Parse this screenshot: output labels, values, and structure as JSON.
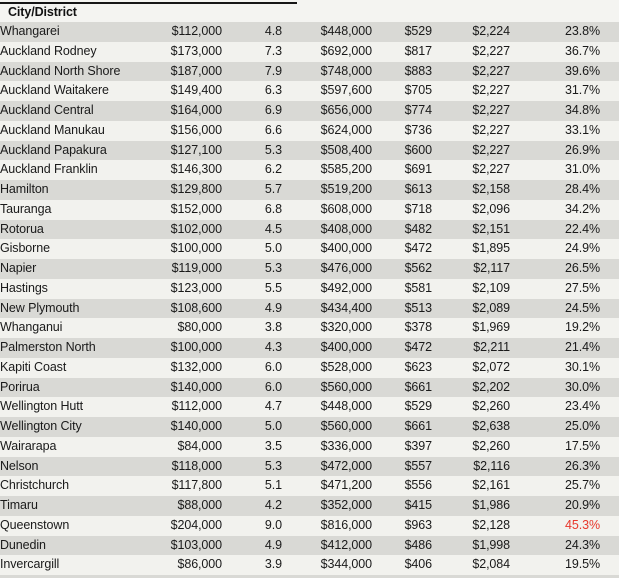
{
  "header": {
    "title": "City/District"
  },
  "colors": {
    "stripe_row": "#d9d9d5",
    "plain_row": "#f2f2ee",
    "header_bg": "#f4f4f1",
    "text": "#1a1a1a",
    "percent_text": "#3f3f3f",
    "alert_red": "#e8372c",
    "top_rule": "#161616"
  },
  "chart_data": {
    "type": "table",
    "title": "City/District",
    "columns": [
      "City/District",
      "",
      "",
      "",
      "",
      "",
      ""
    ],
    "rows": [
      [
        "Whangarei",
        "$112,000",
        "4.8",
        "$448,000",
        "$529",
        "$2,224",
        "23.8%"
      ],
      [
        "Auckland Rodney",
        "$173,000",
        "7.3",
        "$692,000",
        "$817",
        "$2,227",
        "36.7%"
      ],
      [
        "Auckland North Shore",
        "$187,000",
        "7.9",
        "$748,000",
        "$883",
        "$2,227",
        "39.6%"
      ],
      [
        "Auckland Waitakere",
        "$149,400",
        "6.3",
        "$597,600",
        "$705",
        "$2,227",
        "31.7%"
      ],
      [
        "Auckland Central",
        "$164,000",
        "6.9",
        "$656,000",
        "$774",
        "$2,227",
        "34.8%"
      ],
      [
        "Auckland Manukau",
        "$156,000",
        "6.6",
        "$624,000",
        "$736",
        "$2,227",
        "33.1%"
      ],
      [
        "Auckland Papakura",
        "$127,100",
        "5.3",
        "$508,400",
        "$600",
        "$2,227",
        "26.9%"
      ],
      [
        "Auckland Franklin",
        "$146,300",
        "6.2",
        "$585,200",
        "$691",
        "$2,227",
        "31.0%"
      ],
      [
        "Hamilton",
        "$129,800",
        "5.7",
        "$519,200",
        "$613",
        "$2,158",
        "28.4%"
      ],
      [
        "Tauranga",
        "$152,000",
        "6.8",
        "$608,000",
        "$718",
        "$2,096",
        "34.2%"
      ],
      [
        "Rotorua",
        "$102,000",
        "4.5",
        "$408,000",
        "$482",
        "$2,151",
        "22.4%"
      ],
      [
        "Gisborne",
        "$100,000",
        "5.0",
        "$400,000",
        "$472",
        "$1,895",
        "24.9%"
      ],
      [
        "Napier",
        "$119,000",
        "5.3",
        "$476,000",
        "$562",
        "$2,117",
        "26.5%"
      ],
      [
        "Hastings",
        "$123,000",
        "5.5",
        "$492,000",
        "$581",
        "$2,109",
        "27.5%"
      ],
      [
        "New Plymouth",
        "$108,600",
        "4.9",
        "$434,400",
        "$513",
        "$2,089",
        "24.5%"
      ],
      [
        "Whanganui",
        "$80,000",
        "3.8",
        "$320,000",
        "$378",
        "$1,969",
        "19.2%"
      ],
      [
        "Palmerston North",
        "$100,000",
        "4.3",
        "$400,000",
        "$472",
        "$2,211",
        "21.4%"
      ],
      [
        "Kapiti Coast",
        "$132,000",
        "6.0",
        "$528,000",
        "$623",
        "$2,072",
        "30.1%"
      ],
      [
        "Porirua",
        "$140,000",
        "6.0",
        "$560,000",
        "$661",
        "$2,202",
        "30.0%"
      ],
      [
        "Wellington Hutt",
        "$112,000",
        "4.7",
        "$448,000",
        "$529",
        "$2,260",
        "23.4%"
      ],
      [
        "Wellington City",
        "$140,000",
        "5.0",
        "$560,000",
        "$661",
        "$2,638",
        "25.0%"
      ],
      [
        "Wairarapa",
        "$84,000",
        "3.5",
        "$336,000",
        "$397",
        "$2,260",
        "17.5%"
      ],
      [
        "Nelson",
        "$118,000",
        "5.3",
        "$472,000",
        "$557",
        "$2,116",
        "26.3%"
      ],
      [
        "Christchurch",
        "$117,800",
        "5.1",
        "$471,200",
        "$556",
        "$2,161",
        "25.7%"
      ],
      [
        "Timaru",
        "$88,000",
        "4.2",
        "$352,000",
        "$415",
        "$1,986",
        "20.9%"
      ],
      [
        "Queenstown",
        "$204,000",
        "9.0",
        "$816,000",
        "$963",
        "$2,128",
        "45.3%"
      ],
      [
        "Dunedin",
        "$103,000",
        "4.9",
        "$412,000",
        "$486",
        "$1,998",
        "24.3%"
      ],
      [
        "Invercargill",
        "$86,000",
        "3.9",
        "$344,000",
        "$406",
        "$2,084",
        "19.5%"
      ]
    ],
    "highlighted_cells": [
      {
        "row": "Queenstown",
        "column_index": 6,
        "value": "45.3%",
        "color": "#e8372c"
      }
    ],
    "layout_hints": {
      "striped": true,
      "first_stripe_color": "#d9d9d5",
      "header_column_labeled_only_first": true
    }
  }
}
